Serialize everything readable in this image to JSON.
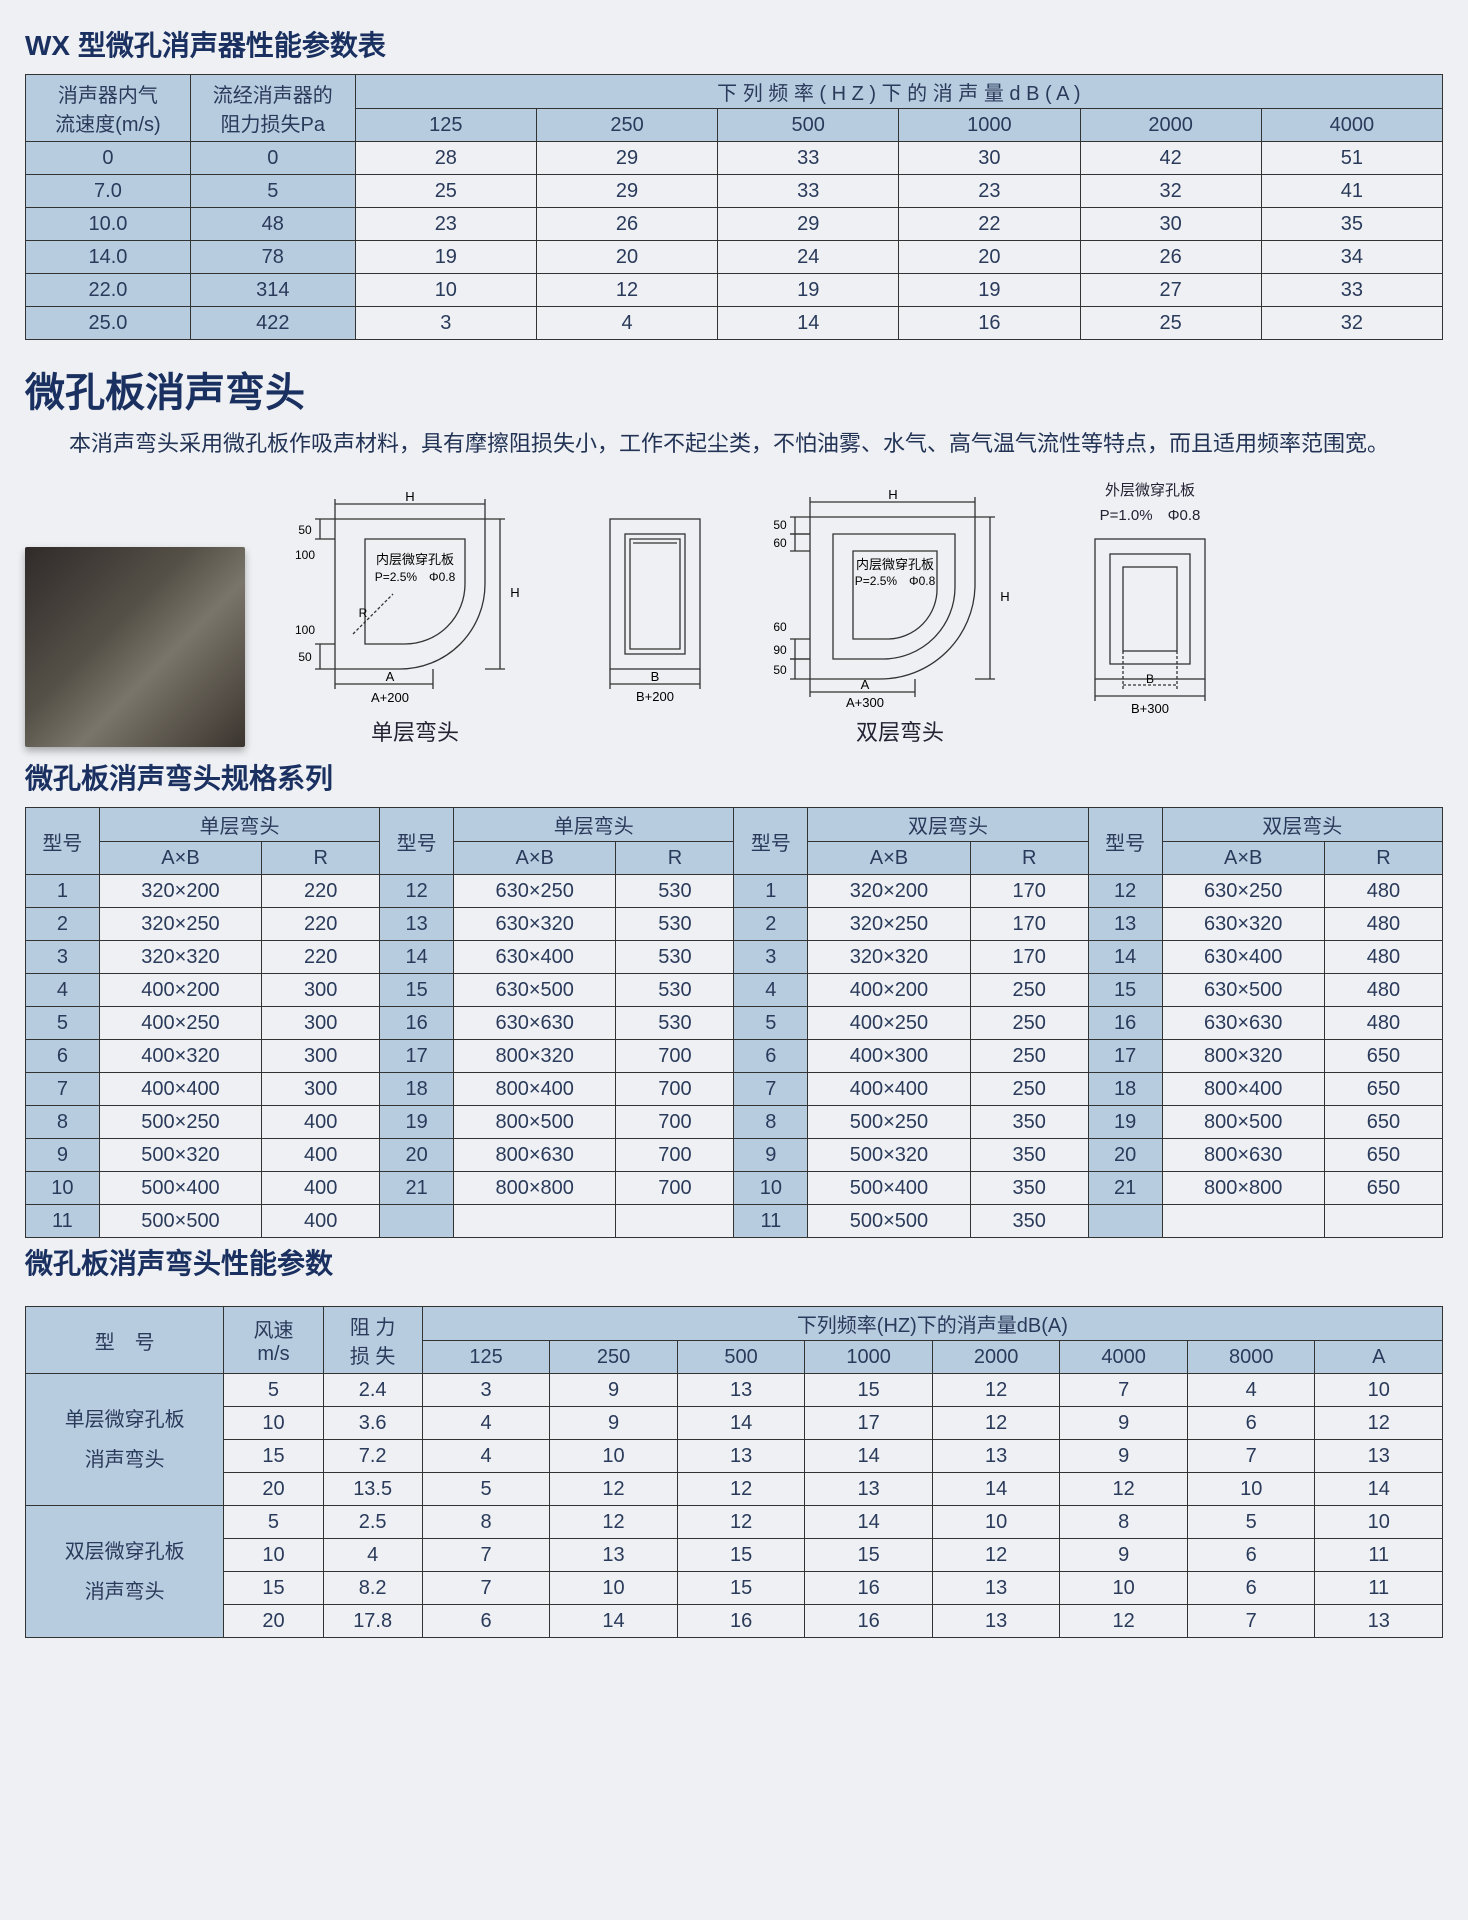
{
  "colors": {
    "header_bg": "#b8cce0",
    "border": "#333333",
    "page_bg": "#eef0f3",
    "text": "#1a3060"
  },
  "table1": {
    "title": "WX 型微孔消声器性能参数表",
    "row_header1": "消声器内气\n流速度(m/s)",
    "row_header2": "流经消声器的\n阻力损失Pa",
    "freq_header": "下 列 频 率 ( H Z ) 下 的 消 声 量   d B ( A )",
    "freqs": [
      "125",
      "250",
      "500",
      "1000",
      "2000",
      "4000"
    ],
    "rows": [
      [
        "0",
        "0",
        "28",
        "29",
        "33",
        "30",
        "42",
        "51"
      ],
      [
        "7.0",
        "5",
        "25",
        "29",
        "33",
        "23",
        "32",
        "41"
      ],
      [
        "10.0",
        "48",
        "23",
        "26",
        "29",
        "22",
        "30",
        "35"
      ],
      [
        "14.0",
        "78",
        "19",
        "20",
        "24",
        "20",
        "26",
        "34"
      ],
      [
        "22.0",
        "314",
        "10",
        "12",
        "19",
        "19",
        "27",
        "33"
      ],
      [
        "25.0",
        "422",
        "3",
        "4",
        "14",
        "16",
        "25",
        "32"
      ]
    ]
  },
  "section2_title": "微孔板消声弯头",
  "section2_desc": "本消声弯头采用微孔板作吸声材料，具有摩擦阻损失小，工作不起尘类，不怕油雾、水气、高气温气流性等特点，而且适用频率范围宽。",
  "diagrams": {
    "inner_label": "内层微穿孔板",
    "inner_spec": "P=2.5%　Φ0.8",
    "outer_label": "外层微穿孔板",
    "outer_spec": "P=1.0%　Φ0.8",
    "single_cap": "单层弯头",
    "double_cap": "双层弯头",
    "dim_H": "H",
    "dim_A": "A",
    "dim_B": "B",
    "dim_R": "R",
    "A200": "A+200",
    "B200": "B+200",
    "A300": "A+300",
    "B300": "B+300",
    "d50": "50",
    "d60": "60",
    "d90": "90",
    "d100": "100"
  },
  "table2": {
    "title": "微孔板消声弯头规格系列",
    "col_model": "型号",
    "col_single": "单层弯头",
    "col_double": "双层弯头",
    "col_AxB": "A×B",
    "col_R": "R",
    "rows_single_a": [
      [
        "1",
        "320×200",
        "220"
      ],
      [
        "2",
        "320×250",
        "220"
      ],
      [
        "3",
        "320×320",
        "220"
      ],
      [
        "4",
        "400×200",
        "300"
      ],
      [
        "5",
        "400×250",
        "300"
      ],
      [
        "6",
        "400×320",
        "300"
      ],
      [
        "7",
        "400×400",
        "300"
      ],
      [
        "8",
        "500×250",
        "400"
      ],
      [
        "9",
        "500×320",
        "400"
      ],
      [
        "10",
        "500×400",
        "400"
      ],
      [
        "11",
        "500×500",
        "400"
      ]
    ],
    "rows_single_b": [
      [
        "12",
        "630×250",
        "530"
      ],
      [
        "13",
        "630×320",
        "530"
      ],
      [
        "14",
        "630×400",
        "530"
      ],
      [
        "15",
        "630×500",
        "530"
      ],
      [
        "16",
        "630×630",
        "530"
      ],
      [
        "17",
        "800×320",
        "700"
      ],
      [
        "18",
        "800×400",
        "700"
      ],
      [
        "19",
        "800×500",
        "700"
      ],
      [
        "20",
        "800×630",
        "700"
      ],
      [
        "21",
        "800×800",
        "700"
      ],
      [
        "",
        "",
        ""
      ]
    ],
    "rows_double_a": [
      [
        "1",
        "320×200",
        "170"
      ],
      [
        "2",
        "320×250",
        "170"
      ],
      [
        "3",
        "320×320",
        "170"
      ],
      [
        "4",
        "400×200",
        "250"
      ],
      [
        "5",
        "400×250",
        "250"
      ],
      [
        "6",
        "400×300",
        "250"
      ],
      [
        "7",
        "400×400",
        "250"
      ],
      [
        "8",
        "500×250",
        "350"
      ],
      [
        "9",
        "500×320",
        "350"
      ],
      [
        "10",
        "500×400",
        "350"
      ],
      [
        "11",
        "500×500",
        "350"
      ]
    ],
    "rows_double_b": [
      [
        "12",
        "630×250",
        "480"
      ],
      [
        "13",
        "630×320",
        "480"
      ],
      [
        "14",
        "630×400",
        "480"
      ],
      [
        "15",
        "630×500",
        "480"
      ],
      [
        "16",
        "630×630",
        "480"
      ],
      [
        "17",
        "800×320",
        "650"
      ],
      [
        "18",
        "800×400",
        "650"
      ],
      [
        "19",
        "800×500",
        "650"
      ],
      [
        "20",
        "800×630",
        "650"
      ],
      [
        "21",
        "800×800",
        "650"
      ],
      [
        "",
        "",
        ""
      ]
    ]
  },
  "table3": {
    "title": "微孔板消声弯头性能参数",
    "col_model": "型　号",
    "col_speed": "风速\nm/s",
    "col_loss": "阻 力\n损 失",
    "freq_header": "下列频率(HZ)下的消声量dB(A)",
    "freqs": [
      "125",
      "250",
      "500",
      "1000",
      "2000",
      "4000",
      "8000",
      "A"
    ],
    "group1": "单层微穿孔板\n消声弯头",
    "group2": "双层微穿孔板\n消声弯头",
    "rows1": [
      [
        "5",
        "2.4",
        "3",
        "9",
        "13",
        "15",
        "12",
        "7",
        "4",
        "10"
      ],
      [
        "10",
        "3.6",
        "4",
        "9",
        "14",
        "17",
        "12",
        "9",
        "6",
        "12"
      ],
      [
        "15",
        "7.2",
        "4",
        "10",
        "13",
        "14",
        "13",
        "9",
        "7",
        "13"
      ],
      [
        "20",
        "13.5",
        "5",
        "12",
        "12",
        "13",
        "14",
        "12",
        "10",
        "14"
      ]
    ],
    "rows2": [
      [
        "5",
        "2.5",
        "8",
        "12",
        "12",
        "14",
        "10",
        "8",
        "5",
        "10"
      ],
      [
        "10",
        "4",
        "7",
        "13",
        "15",
        "15",
        "12",
        "9",
        "6",
        "11"
      ],
      [
        "15",
        "8.2",
        "7",
        "10",
        "15",
        "16",
        "13",
        "10",
        "6",
        "11"
      ],
      [
        "20",
        "17.8",
        "6",
        "14",
        "16",
        "16",
        "13",
        "12",
        "7",
        "13"
      ]
    ]
  }
}
